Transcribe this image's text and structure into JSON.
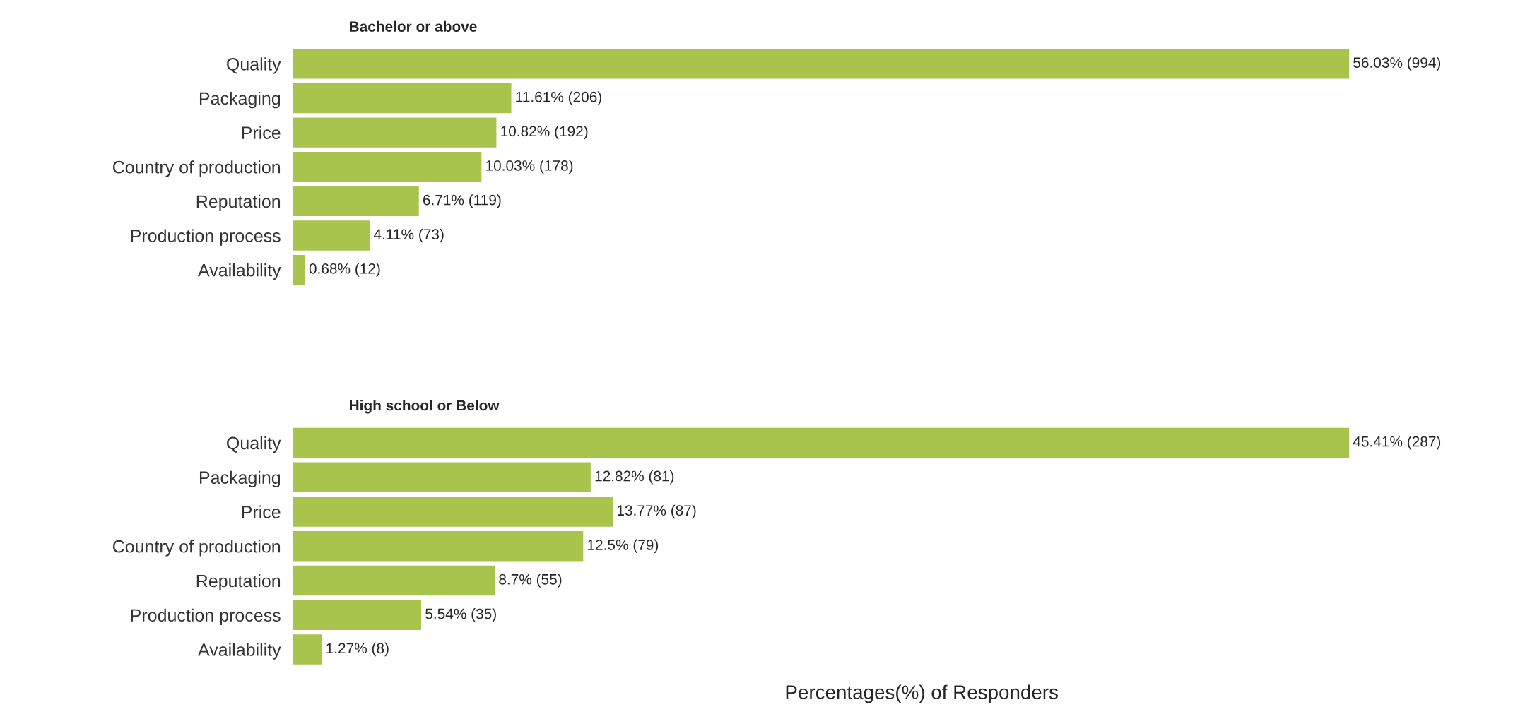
{
  "chart_data": [
    {
      "type": "bar",
      "orientation": "horizontal",
      "title": "Bachelor or above",
      "categories": [
        "Quality",
        "Packaging",
        "Price",
        "Country of production",
        "Reputation",
        "Production process",
        "Availability"
      ],
      "values": [
        56.03,
        11.61,
        10.82,
        10.03,
        6.71,
        4.11,
        0.68
      ],
      "value_labels": [
        "56.03% (994)",
        "11.61% (206)",
        "10.82% (192)",
        "10.03% (178)",
        "6.71% (119)",
        "4.11% (73)",
        "0.68% (12)"
      ],
      "color": "#a8c44c",
      "grid": false,
      "legend": false,
      "tick_labels": "y"
    },
    {
      "type": "bar",
      "orientation": "horizontal",
      "title": "High school or Below",
      "xlabel": "Percentages(%) of Responders",
      "categories": [
        "Quality",
        "Packaging",
        "Price",
        "Country of production",
        "Reputation",
        "Production process",
        "Availability"
      ],
      "values": [
        45.41,
        12.82,
        13.77,
        12.5,
        8.7,
        5.54,
        1.27
      ],
      "value_labels": [
        "45.41% (287)",
        "12.82% (81)",
        "13.77% (87)",
        "12.5% (79)",
        "8.7% (55)",
        "5.54% (35)",
        "1.27% (8)"
      ],
      "color": "#a8c44c",
      "grid": false,
      "legend": false,
      "tick_labels": "y"
    }
  ]
}
